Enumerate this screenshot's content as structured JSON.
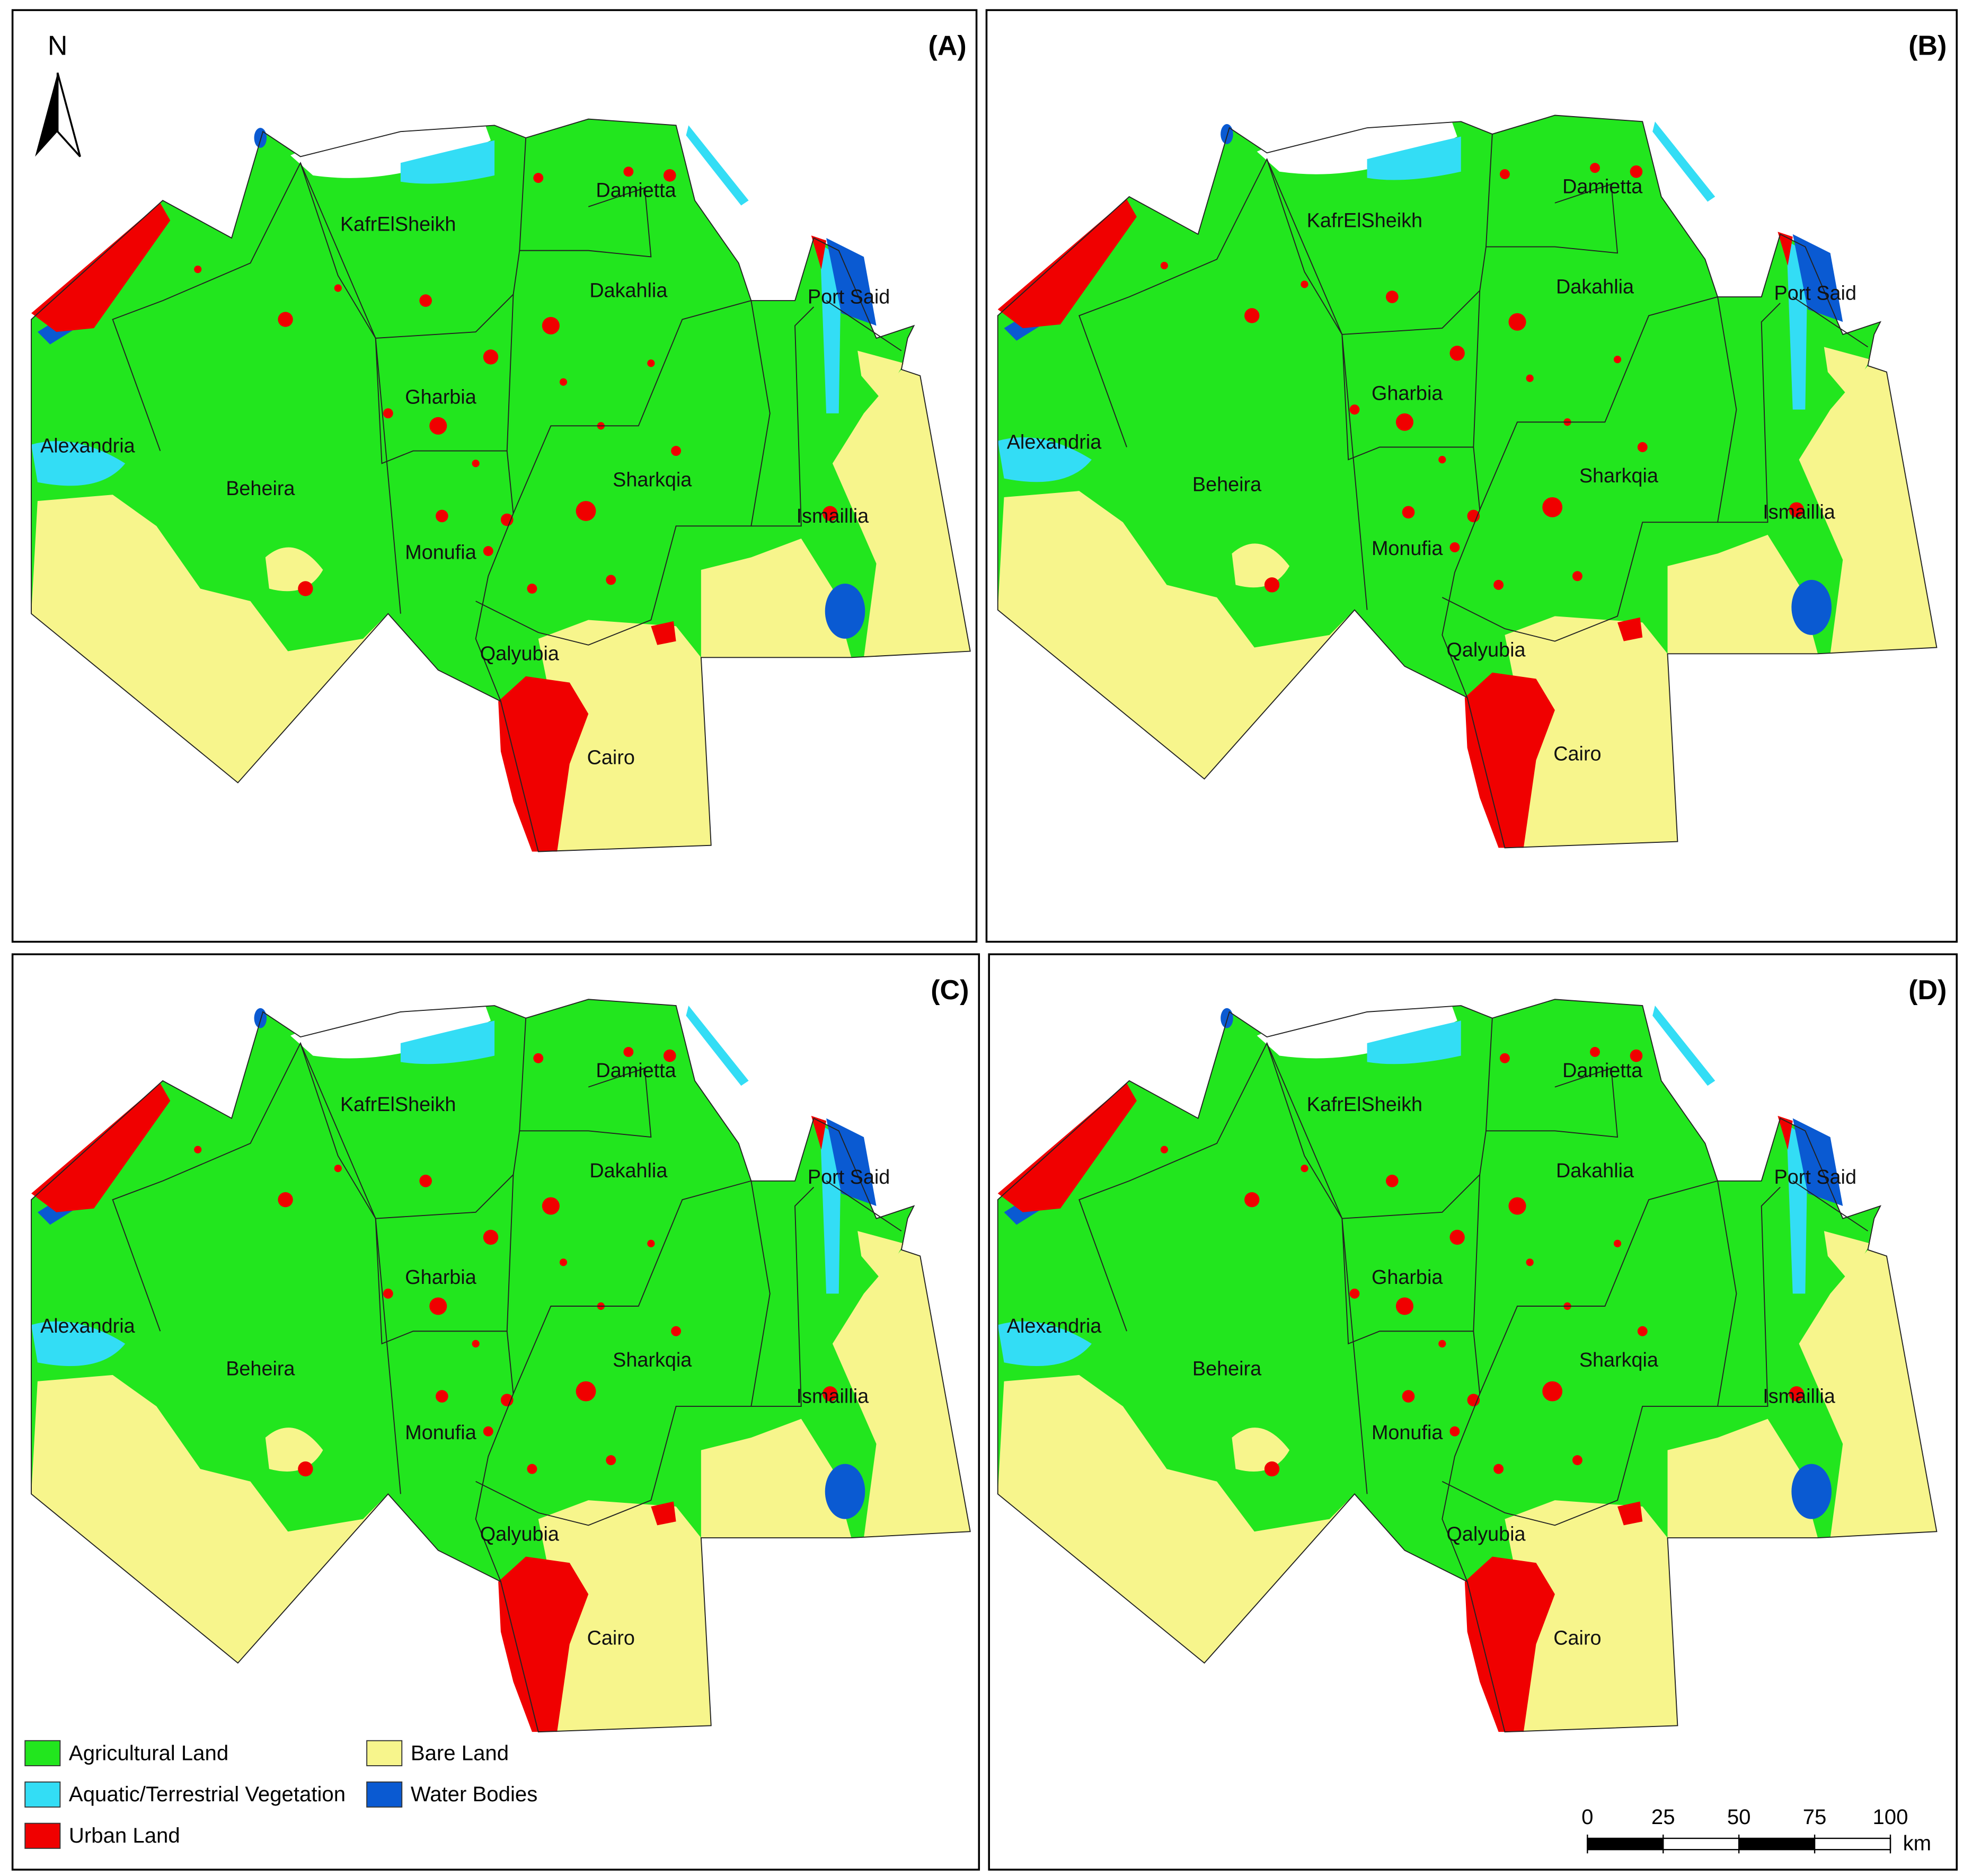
{
  "panels": [
    {
      "label": "(A)"
    },
    {
      "label": "(B)"
    },
    {
      "label": "(C)"
    },
    {
      "label": "(D)"
    }
  ],
  "regions": [
    "Damietta",
    "KafrElSheikh",
    "Dakahlia",
    "Port Said",
    "Gharbia",
    "Alexandria",
    "Beheira",
    "Sharkqia",
    "Ismaillia",
    "Monufia",
    "Qalyubia",
    "Cairo"
  ],
  "north": "N",
  "legend": [
    {
      "name": "Agricultural Land",
      "color": "#22e61e"
    },
    {
      "name": "Aquatic/Terrestrial Vegetation",
      "color": "#33ddf5"
    },
    {
      "name": "Urban Land",
      "color": "#f00000"
    },
    {
      "name": "Bare Land",
      "color": "#f7f58c"
    },
    {
      "name": "Water Bodies",
      "color": "#0a5ad2"
    }
  ],
  "scale_bar": {
    "ticks": [
      0,
      25,
      50,
      75,
      100
    ],
    "unit": "km"
  }
}
